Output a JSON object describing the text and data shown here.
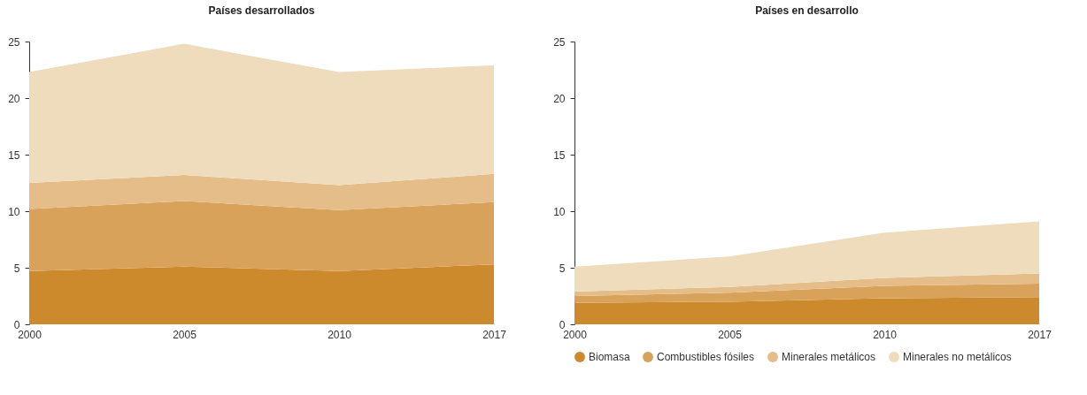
{
  "chart_data": [
    {
      "type": "area",
      "title": "Países desarrollados",
      "stacked": true,
      "categories": [
        "2000",
        "2005",
        "2010",
        "2017"
      ],
      "ylim": [
        0,
        25
      ],
      "yticks": [
        0,
        5,
        10,
        15,
        20,
        25
      ],
      "grid": false,
      "legend": false,
      "series": [
        {
          "color": "#cc8a2c",
          "values": [
            4.7,
            5.1,
            4.7,
            5.3
          ]
        },
        {
          "color": "#d8a25a",
          "values": [
            5.5,
            5.8,
            5.4,
            5.5
          ]
        },
        {
          "color": "#e4bd88",
          "values": [
            2.3,
            2.3,
            2.2,
            2.5
          ]
        },
        {
          "color": "#efdcbd",
          "values": [
            9.8,
            11.6,
            10.0,
            9.6
          ]
        }
      ]
    },
    {
      "type": "area",
      "title": "Países en desarrollo",
      "stacked": true,
      "categories": [
        "2000",
        "2005",
        "2010",
        "2017"
      ],
      "ylim": [
        0,
        25
      ],
      "yticks": [
        0,
        5,
        10,
        15,
        20,
        25
      ],
      "grid": false,
      "legend": "bottom",
      "series": [
        {
          "name": "Biomasa",
          "color": "#cc8a2c",
          "values": [
            1.9,
            2.0,
            2.3,
            2.4
          ]
        },
        {
          "name": "Combustibles fósiles",
          "color": "#d8a25a",
          "values": [
            0.6,
            0.8,
            1.1,
            1.2
          ]
        },
        {
          "name": "Minerales metálicos",
          "color": "#e4bd88",
          "values": [
            0.4,
            0.5,
            0.7,
            0.9
          ]
        },
        {
          "name": "Minerales no metálicos",
          "color": "#efdcbd",
          "values": [
            2.2,
            2.7,
            4.0,
            4.6
          ]
        }
      ]
    }
  ]
}
